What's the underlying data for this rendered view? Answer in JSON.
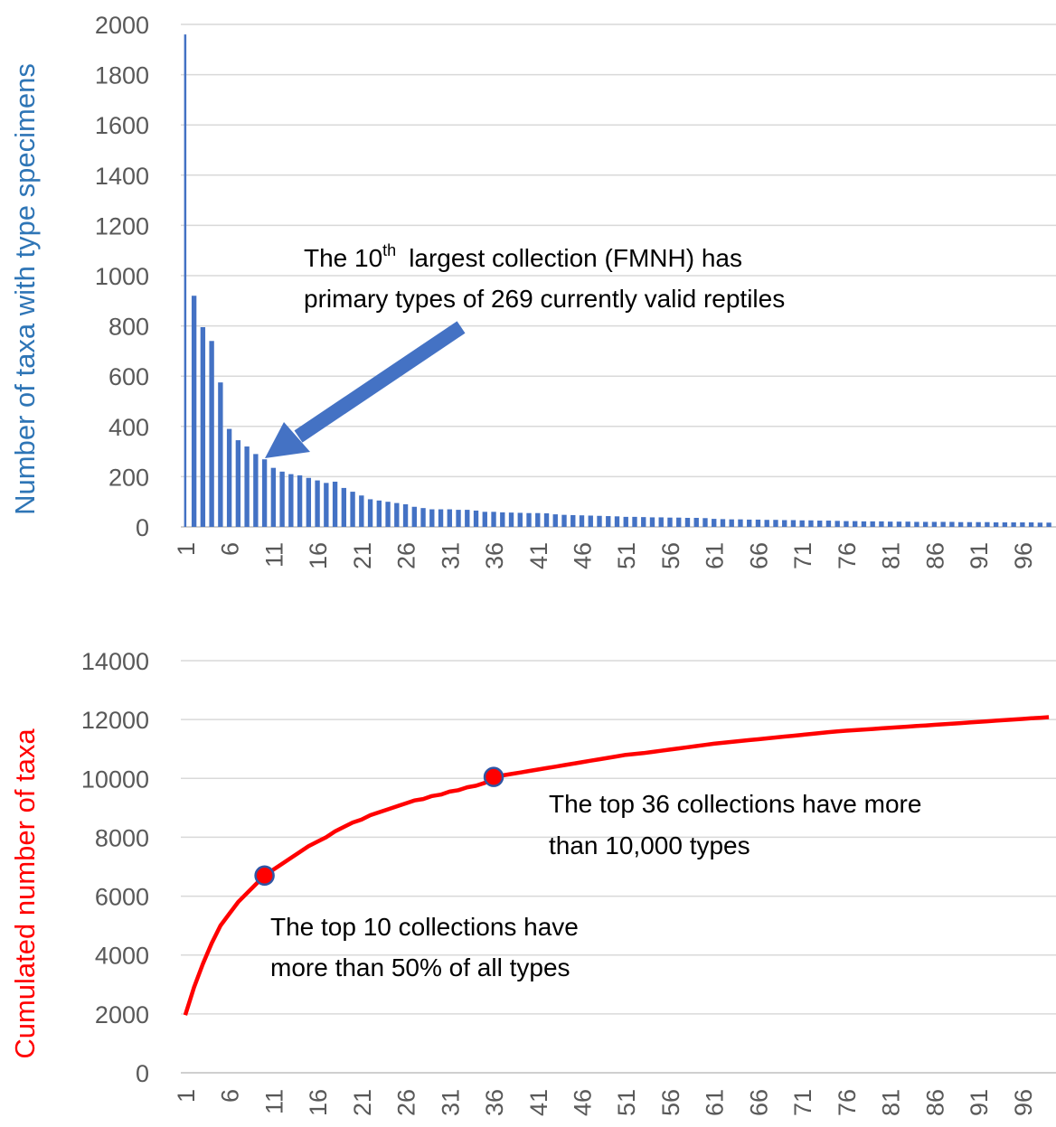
{
  "chart_data": [
    {
      "type": "bar",
      "ylabel": "Number of taxa with type specimens",
      "ylabel_color": "#2e75b6",
      "color": "#4472c4",
      "categories": [
        "1",
        null,
        null,
        null,
        null,
        "6",
        null,
        null,
        null,
        null,
        "11",
        null,
        null,
        null,
        null,
        "16",
        null,
        null,
        null,
        null,
        "21",
        null,
        null,
        null,
        null,
        "26",
        null,
        null,
        null,
        null,
        "31",
        null,
        null,
        null,
        null,
        "36",
        null,
        null,
        null,
        null,
        "41",
        null,
        null,
        null,
        null,
        "46",
        null,
        null,
        null,
        null,
        "51",
        null,
        null,
        null,
        null,
        "56",
        null,
        null,
        null,
        null,
        "61",
        null,
        null,
        null,
        null,
        "66",
        null,
        null,
        null,
        null,
        "71",
        null,
        null,
        null,
        null,
        "76",
        null,
        null,
        null,
        null,
        "81",
        null,
        null,
        null,
        null,
        "86",
        null,
        null,
        null,
        null,
        "91",
        null,
        null,
        null,
        null,
        "96",
        null,
        null,
        null
      ],
      "values": [
        1960,
        920,
        795,
        740,
        575,
        390,
        345,
        320,
        290,
        269,
        235,
        220,
        210,
        205,
        195,
        185,
        175,
        180,
        155,
        140,
        125,
        110,
        105,
        100,
        95,
        90,
        80,
        75,
        70,
        70,
        70,
        68,
        68,
        65,
        60,
        60,
        58,
        57,
        56,
        55,
        55,
        54,
        50,
        48,
        47,
        46,
        45,
        44,
        43,
        42,
        40,
        40,
        39,
        38,
        38,
        37,
        37,
        36,
        36,
        35,
        32,
        31,
        30,
        30,
        29,
        29,
        28,
        28,
        27,
        27,
        26,
        26,
        25,
        25,
        24,
        23,
        23,
        22,
        22,
        22,
        21,
        21,
        21,
        20,
        20,
        20,
        20,
        20,
        19,
        19,
        19,
        19,
        18,
        18,
        18,
        18,
        18,
        17,
        17
      ],
      "ylim": [
        0,
        2000
      ],
      "yticks": [
        0,
        200,
        400,
        600,
        800,
        1000,
        1200,
        1400,
        1600,
        1800,
        2000
      ],
      "grid": true,
      "annotations": [
        "The 10",
        "th",
        "largest   collection (FMNH)  has",
        "primary types of 269 currently valid reptiles"
      ]
    },
    {
      "type": "line",
      "ylabel": "Cumulated number of taxa",
      "ylabel_color": "#ff0000",
      "color": "#ff0000",
      "categories": [
        "1",
        null,
        null,
        null,
        null,
        "6",
        null,
        null,
        null,
        null,
        "11",
        null,
        null,
        null,
        null,
        "16",
        null,
        null,
        null,
        null,
        "21",
        null,
        null,
        null,
        null,
        "26",
        null,
        null,
        null,
        null,
        "31",
        null,
        null,
        null,
        null,
        "36",
        null,
        null,
        null,
        null,
        "41",
        null,
        null,
        null,
        null,
        "46",
        null,
        null,
        null,
        null,
        "51",
        null,
        null,
        null,
        null,
        "56",
        null,
        null,
        null,
        null,
        "61",
        null,
        null,
        null,
        null,
        "66",
        null,
        null,
        null,
        null,
        "71",
        null,
        null,
        null,
        null,
        "76",
        null,
        null,
        null,
        null,
        "81",
        null,
        null,
        null,
        null,
        "86",
        null,
        null,
        null,
        null,
        "91",
        null,
        null,
        null,
        null,
        "96",
        null,
        null,
        null
      ],
      "values": [
        1960,
        2900,
        3700,
        4400,
        5000,
        5400,
        5800,
        6100,
        6400,
        6700,
        6900,
        7100,
        7300,
        7500,
        7700,
        7850,
        8000,
        8200,
        8350,
        8500,
        8600,
        8750,
        8850,
        8950,
        9050,
        9150,
        9250,
        9300,
        9400,
        9450,
        9550,
        9600,
        9700,
        9750,
        9850,
        10050,
        10100,
        10150,
        10200,
        10250,
        10300,
        10350,
        10400,
        10450,
        10500,
        10550,
        10600,
        10650,
        10700,
        10750,
        10800,
        10830,
        10860,
        10900,
        10940,
        10980,
        11020,
        11060,
        11100,
        11140,
        11180,
        11210,
        11240,
        11270,
        11300,
        11330,
        11360,
        11390,
        11420,
        11450,
        11480,
        11510,
        11540,
        11570,
        11600,
        11620,
        11640,
        11660,
        11680,
        11700,
        11720,
        11740,
        11760,
        11780,
        11800,
        11820,
        11840,
        11860,
        11880,
        11900,
        11920,
        11940,
        11960,
        11980,
        12000,
        12020,
        12040,
        12060,
        12080
      ],
      "markers": {
        "x": [
          10,
          36
        ],
        "values": [
          6700,
          10050
        ],
        "color": "#ff0000",
        "edgecolor": "#2f55a4"
      },
      "ylim": [
        0,
        14000
      ],
      "yticks": [
        0,
        2000,
        4000,
        6000,
        8000,
        10000,
        12000,
        14000
      ],
      "grid": true,
      "annotations": [
        "The top 36 collections have  more",
        "than 10,000 types",
        "The top 10 collections have",
        "more than 50% of all types"
      ]
    }
  ]
}
